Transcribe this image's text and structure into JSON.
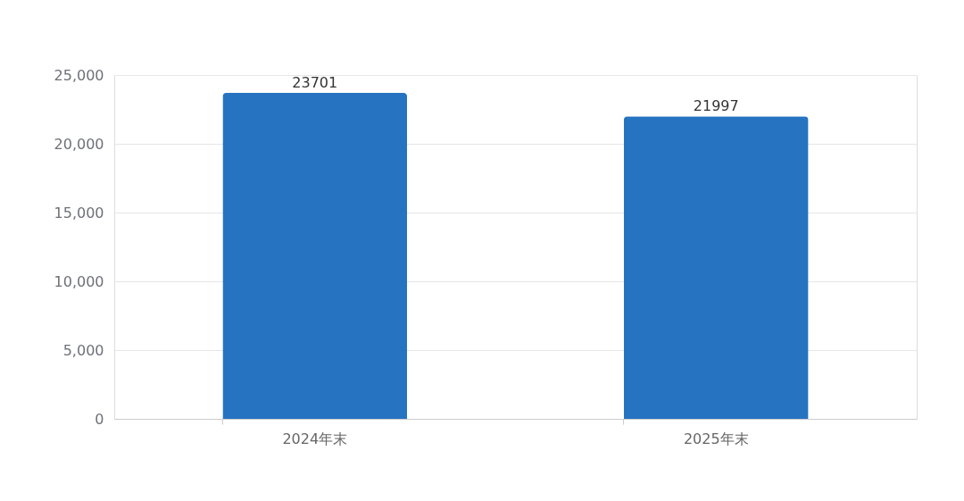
{
  "chart_data": {
    "type": "bar",
    "categories": [
      "2024年末",
      "2025年末"
    ],
    "values": [
      23701,
      21997
    ],
    "color": "#2673c2",
    "ylim": [
      0,
      25000
    ],
    "yticks": [
      {
        "value": 0,
        "label": "0"
      },
      {
        "value": 5000,
        "label": "5,000"
      },
      {
        "value": 10000,
        "label": "10,000"
      },
      {
        "value": 15000,
        "label": "15,000"
      },
      {
        "value": 20000,
        "label": "20,000"
      },
      {
        "value": 25000,
        "label": "25,000"
      }
    ],
    "grid": "y",
    "data_labels": true
  }
}
